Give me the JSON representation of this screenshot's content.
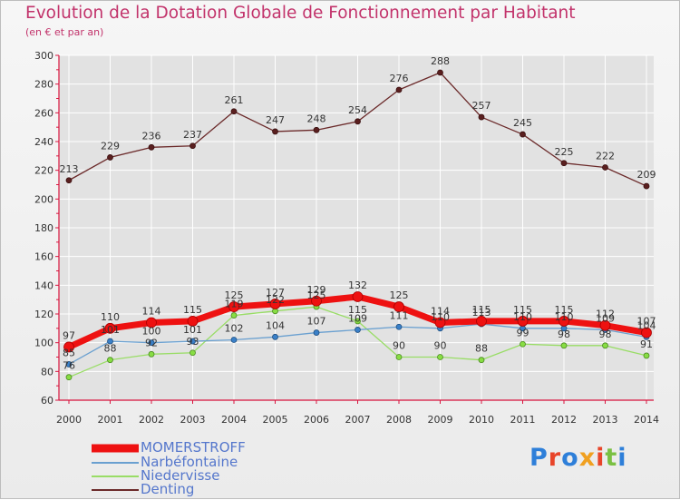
{
  "header": {
    "title": "Evolution de la Dotation Globale de Fonctionnement par Habitant",
    "subtitle": "(en € et par an)"
  },
  "logo": {
    "text": "Proxiti"
  },
  "colors": {
    "title": "#c2336b",
    "axis": "#d9143e",
    "grid": "#ffffff",
    "MOMERSTROFF": "#ee1111",
    "Narbéfontaine": "#6aa0d0",
    "Niedervisse": "#99dd66",
    "Denting": "#6b2a2a"
  },
  "chart_data": {
    "type": "line",
    "title": "Evolution de la Dotation Globale de Fonctionnement par Habitant",
    "subtitle": "(en € et par an)",
    "xlabel": "",
    "ylabel": "",
    "ylim": [
      60,
      300
    ],
    "yticks": [
      "60",
      "80",
      "100",
      "120",
      "140",
      "160",
      "180",
      "200",
      "220",
      "240",
      "260",
      "280",
      "300"
    ],
    "categories": [
      "2000",
      "2001",
      "2002",
      "2003",
      "2004",
      "2005",
      "2006",
      "2007",
      "2008",
      "2009",
      "2010",
      "2011",
      "2012",
      "2013",
      "2014"
    ],
    "series": [
      {
        "name": "Denting",
        "values": [
          213,
          229,
          236,
          237,
          261,
          247,
          248,
          254,
          276,
          288,
          257,
          245,
          225,
          222,
          209
        ],
        "labels": [
          "213",
          "229",
          "236",
          "237",
          "261",
          "247",
          "248",
          "254",
          "276",
          "288",
          "257",
          "245",
          "225",
          "222",
          "209"
        ]
      },
      {
        "name": "Niedervisse",
        "values": [
          76,
          88,
          92,
          93,
          119,
          122,
          125,
          115,
          90,
          90,
          88,
          99,
          98,
          98,
          91
        ],
        "labels": [
          "76",
          "88",
          "92",
          "93",
          "119",
          "122",
          "125",
          "115",
          "90",
          "90",
          "88",
          "99",
          "98",
          "98",
          "91"
        ]
      },
      {
        "name": "Narbéfontaine",
        "values": [
          85,
          101,
          100,
          101,
          102,
          104,
          107,
          109,
          111,
          110,
          113,
          110,
          110,
          109,
          104
        ],
        "labels": [
          "85",
          "101",
          "100",
          "101",
          "102",
          "104",
          "107",
          "109",
          "111",
          "110",
          "113",
          "110",
          "110",
          "109",
          "104"
        ]
      },
      {
        "name": "MOMERSTROFF",
        "values": [
          97,
          110,
          114,
          115,
          125,
          127,
          129,
          132,
          125,
          114,
          115,
          115,
          115,
          112,
          107
        ],
        "labels": [
          "97",
          "110",
          "114",
          "115",
          "125",
          "127",
          "129",
          "132",
          "125",
          "114",
          "115",
          "115",
          "115",
          "112",
          "107"
        ]
      }
    ],
    "legend": [
      "MOMERSTROFF",
      "Narbéfontaine",
      "Niedervisse",
      "Denting"
    ],
    "legend_position": "bottom-left",
    "grid": true
  }
}
